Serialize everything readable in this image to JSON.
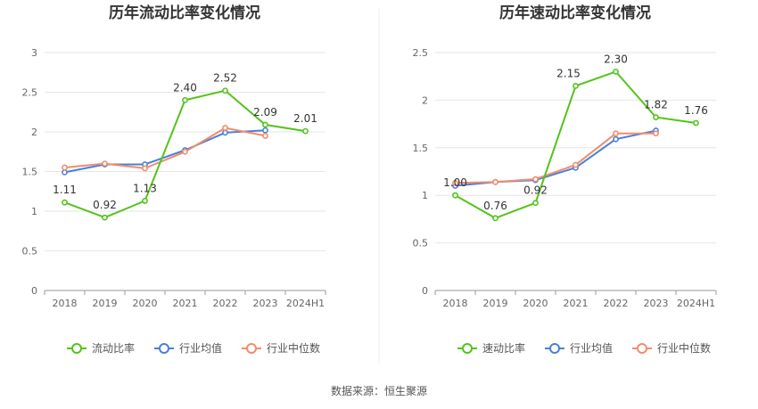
{
  "colors": {
    "series": [
      "#52c41a",
      "#4a7fdc",
      "#f08c6e"
    ],
    "grid": "#e6e6e6",
    "axis": "#999999"
  },
  "source": "数据来源：恒生聚源",
  "chart_data": [
    {
      "type": "line",
      "title": "历年流动比率变化情况",
      "categories": [
        "2018",
        "2019",
        "2020",
        "2021",
        "2022",
        "2023",
        "2024H1"
      ],
      "yticks": [
        "0",
        "0.5",
        "1",
        "1.5",
        "2",
        "2.5",
        "3"
      ],
      "ylim": [
        0,
        3
      ],
      "grid": true,
      "legend_position": "bottom",
      "series": [
        {
          "name": "流动比率",
          "values": [
            1.11,
            0.92,
            1.13,
            2.4,
            2.52,
            2.09,
            2.01
          ],
          "labels": [
            "1.11",
            "0.92",
            "1.13",
            "2.40",
            "2.52",
            "2.09",
            "2.01"
          ]
        },
        {
          "name": "行业均值",
          "values": [
            1.49,
            1.59,
            1.59,
            1.77,
            1.99,
            2.02,
            null
          ]
        },
        {
          "name": "行业中位数",
          "values": [
            1.55,
            1.6,
            1.54,
            1.75,
            2.05,
            1.95,
            null
          ]
        }
      ]
    },
    {
      "type": "line",
      "title": "历年速动比率变化情况",
      "categories": [
        "2018",
        "2019",
        "2020",
        "2021",
        "2022",
        "2023",
        "2024H1"
      ],
      "yticks": [
        "0",
        "0.5",
        "1",
        "1.5",
        "2",
        "2.5"
      ],
      "ylim": [
        0,
        2.5
      ],
      "grid": true,
      "legend_position": "bottom",
      "series": [
        {
          "name": "速动比率",
          "values": [
            1.0,
            0.76,
            0.92,
            2.15,
            2.3,
            1.82,
            1.76
          ],
          "labels": [
            "1.00",
            "0.76",
            "0.92",
            "2.15",
            "2.30",
            "1.82",
            "1.76"
          ]
        },
        {
          "name": "行业均值",
          "values": [
            1.1,
            1.14,
            1.16,
            1.29,
            1.59,
            1.68,
            null
          ]
        },
        {
          "name": "行业中位数",
          "values": [
            1.13,
            1.14,
            1.17,
            1.32,
            1.65,
            1.65,
            null
          ]
        }
      ]
    }
  ]
}
